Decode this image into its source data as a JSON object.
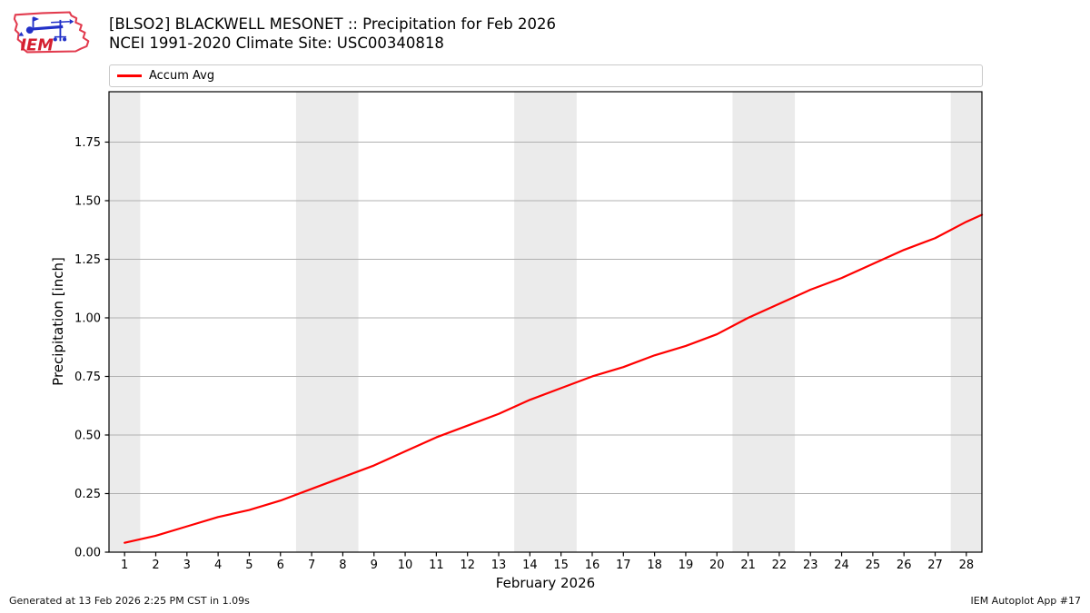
{
  "header": {
    "title_line1": "[BLSO2] BLACKWELL MESONET :: Precipitation for Feb 2026",
    "title_line2": "NCEI 1991-2020 Climate Site: USC00340818",
    "logo_text": "IEM"
  },
  "legend": {
    "label": "Accum Avg",
    "color": "#ff0000"
  },
  "axes": {
    "xlabel": "February 2026",
    "ylabel": "Precipitation [inch]"
  },
  "footer": {
    "left": "Generated at 13 Feb 2026 2:25 PM CST in 1.09s",
    "right": "IEM Autoplot App #17"
  },
  "chart_data": {
    "type": "line",
    "title": "[BLSO2] BLACKWELL MESONET :: Precipitation for Feb 2026",
    "subtitle": "NCEI 1991-2020 Climate Site: USC00340818",
    "xlabel": "February 2026",
    "ylabel": "Precipitation [inch]",
    "xlim": [
      0.5,
      28.5
    ],
    "ylim": [
      0,
      1.965
    ],
    "x_ticks": [
      1,
      2,
      3,
      4,
      5,
      6,
      7,
      8,
      9,
      10,
      11,
      12,
      13,
      14,
      15,
      16,
      17,
      18,
      19,
      20,
      21,
      22,
      23,
      24,
      25,
      26,
      27,
      28
    ],
    "y_ticks": [
      "0.00",
      "0.25",
      "0.50",
      "0.75",
      "1.00",
      "1.25",
      "1.50",
      "1.75"
    ],
    "grid": "horizontal",
    "grid_color": "#b0b0b0",
    "band_color": "#ebebeb",
    "legend_position": "top",
    "legend_entries": [
      "Accum Avg"
    ],
    "weekend_bands": [
      [
        0.5,
        1.5
      ],
      [
        6.5,
        8.5
      ],
      [
        13.5,
        15.5
      ],
      [
        20.5,
        22.5
      ],
      [
        27.5,
        28.5
      ]
    ],
    "series": [
      {
        "name": "Accum Avg",
        "color": "#ff0000",
        "x": [
          1,
          2,
          3,
          4,
          5,
          6,
          7,
          8,
          9,
          10,
          11,
          12,
          13,
          14,
          15,
          16,
          17,
          18,
          19,
          20,
          21,
          22,
          23,
          24,
          25,
          26,
          27,
          28,
          28.5
        ],
        "values": [
          0.04,
          0.07,
          0.11,
          0.15,
          0.18,
          0.22,
          0.27,
          0.32,
          0.37,
          0.43,
          0.49,
          0.54,
          0.59,
          0.65,
          0.7,
          0.75,
          0.79,
          0.84,
          0.88,
          0.93,
          1.0,
          1.06,
          1.12,
          1.17,
          1.23,
          1.29,
          1.34,
          1.41,
          1.44
        ]
      }
    ]
  }
}
